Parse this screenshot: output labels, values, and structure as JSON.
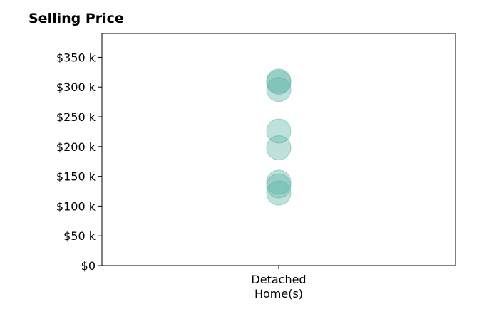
{
  "chart_data": {
    "type": "scatter",
    "title": "Selling Price",
    "xlabel": "",
    "ylabel": "",
    "categories": [
      "Detached\nHome(s)"
    ],
    "category_lines": [
      [
        "Detached",
        "Home(s)"
      ]
    ],
    "ylim": [
      0,
      390000
    ],
    "y_ticks": [
      {
        "value": 0,
        "label": "$0"
      },
      {
        "value": 50000,
        "label": "$50 k"
      },
      {
        "value": 100000,
        "label": "$100 k"
      },
      {
        "value": 150000,
        "label": "$150 k"
      },
      {
        "value": 200000,
        "label": "$200 k"
      },
      {
        "value": 250000,
        "label": "$250 k"
      },
      {
        "value": 300000,
        "label": "$300 k"
      },
      {
        "value": 350000,
        "label": "$350 k"
      }
    ],
    "series": [
      {
        "points": [
          {
            "x": "Detached Home(s)",
            "y": 310000
          },
          {
            "x": "Detached Home(s)",
            "y": 308000
          },
          {
            "x": "Detached Home(s)",
            "y": 296000
          },
          {
            "x": "Detached Home(s)",
            "y": 226000
          },
          {
            "x": "Detached Home(s)",
            "y": 198000
          },
          {
            "x": "Detached Home(s)",
            "y": 140000
          },
          {
            "x": "Detached Home(s)",
            "y": 134000
          },
          {
            "x": "Detached Home(s)",
            "y": 122000
          }
        ]
      }
    ],
    "marker_color": "#5fb3a8",
    "marker_opacity": 0.4,
    "grid": false,
    "legend": "none"
  }
}
